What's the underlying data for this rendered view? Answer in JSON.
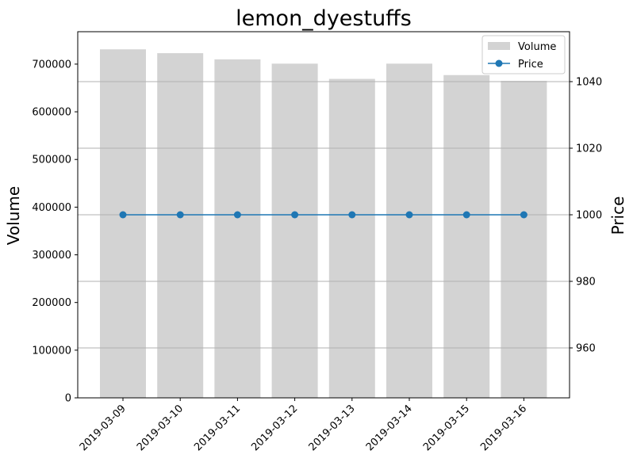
{
  "chart_data": {
    "type": "bar",
    "title": "lemon_dyestuffs",
    "categories": [
      "2019-03-09",
      "2019-03-10",
      "2019-03-11",
      "2019-03-12",
      "2019-03-13",
      "2019-03-14",
      "2019-03-15",
      "2019-03-16"
    ],
    "series": [
      {
        "name": "Volume",
        "type": "bar",
        "axis": "left",
        "color": "#d3d3d3",
        "values": [
          731000,
          723000,
          710000,
          701000,
          669000,
          701000,
          677000,
          665000
        ]
      },
      {
        "name": "Price",
        "type": "line",
        "axis": "right",
        "color": "#1f77b4",
        "marker": "circle",
        "values": [
          1000,
          1000,
          1000,
          1000,
          1000,
          1000,
          1000,
          1000
        ]
      }
    ],
    "ylabel": "Volume",
    "ylabel_right": "Price",
    "ylim": [
      0,
      768000
    ],
    "ylim_right": [
      945,
      1055
    ],
    "yticks": [
      0,
      100000,
      200000,
      300000,
      400000,
      500000,
      600000,
      700000
    ],
    "yticks_right": [
      960,
      980,
      1000,
      1020,
      1040
    ],
    "grid": "horizontal lines at right-axis ticks",
    "legend_position": "top-right"
  }
}
